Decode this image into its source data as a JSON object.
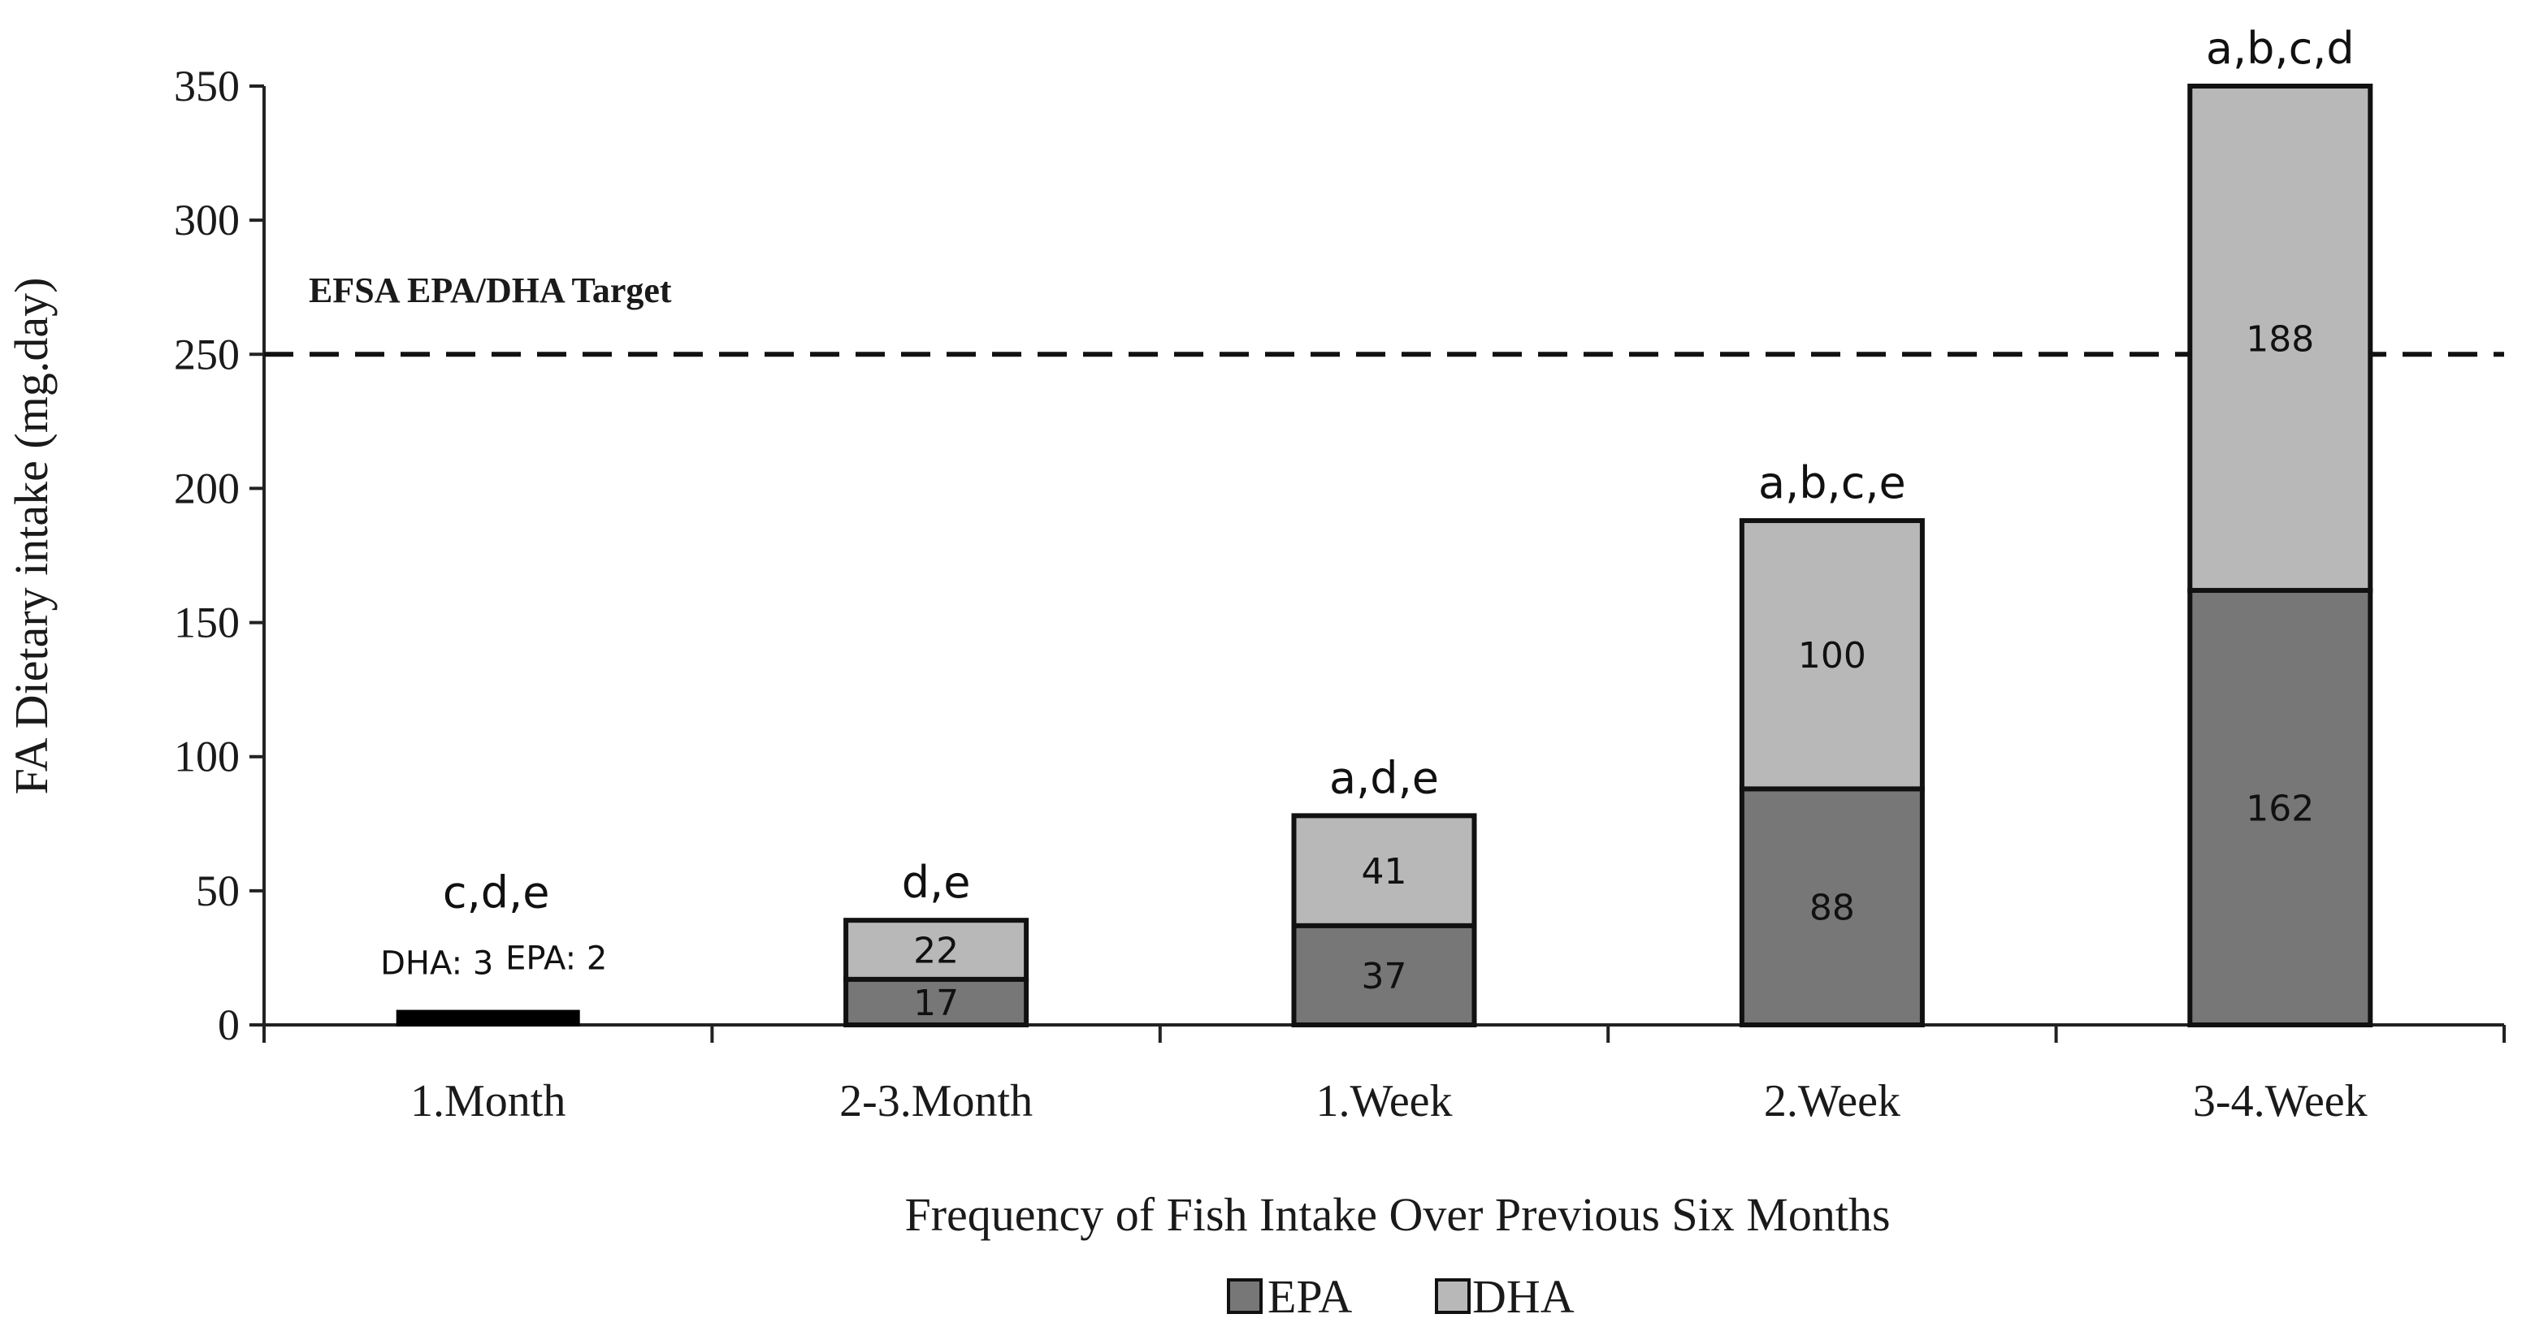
{
  "chart_data": {
    "type": "bar",
    "stacked": true,
    "title": "",
    "xlabel": "Frequency of Fish Intake Over Previous Six Months",
    "ylabel": "FA Dietary intake (mg.day)",
    "ylim": [
      0,
      350
    ],
    "yticks": [
      0,
      50,
      100,
      150,
      200,
      250,
      300,
      350
    ],
    "categories": [
      "1.Month",
      "2-3.Month",
      "1.Week",
      "2.Week",
      "3-4.Week"
    ],
    "series": [
      {
        "name": "EPA",
        "values": [
          2,
          17,
          37,
          88,
          162
        ],
        "color": "#777777"
      },
      {
        "name": "DHA",
        "values": [
          3,
          22,
          41,
          100,
          188
        ],
        "color": "#b8b8b8"
      }
    ],
    "significance_labels": [
      "c,d,e",
      "d,e",
      "a,d,e",
      "a,b,c,e",
      "a,b,c,d"
    ],
    "value_labels": {
      "EPA": [
        "",
        "17",
        "37",
        "88",
        "162"
      ],
      "DHA": [
        "",
        "22",
        "41",
        "100",
        "188"
      ]
    },
    "small_bar_notes": [
      "DHA: 3",
      "EPA: 2"
    ],
    "small_bar_color": "#000000",
    "reference_line": {
      "value": 250,
      "label": "EFSA EPA/DHA Target",
      "style": "dashed"
    },
    "legend": {
      "position": "bottom",
      "entries": [
        "EPA",
        "DHA"
      ]
    },
    "grid": false
  }
}
